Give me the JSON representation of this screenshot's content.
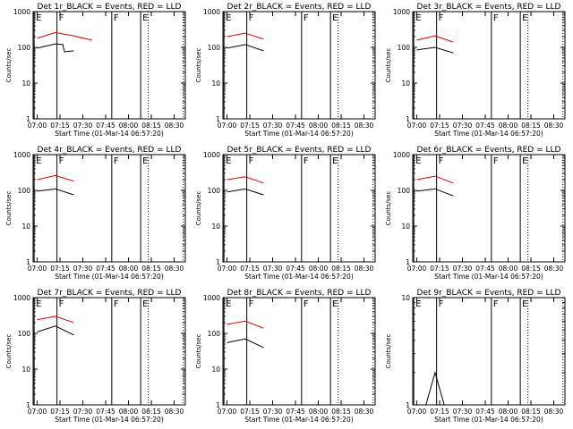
{
  "figure": {
    "x_tick_labels": [
      "07:00",
      "07:15",
      "07:30",
      "07:45",
      "08:00",
      "08:15",
      "08:30"
    ],
    "y_tick_labels": [
      "1",
      "10",
      "100",
      "1000"
    ],
    "xlabel": "Start Time (01-Mar-14 06:57:20)",
    "ylabel": "Counts/sec",
    "colors": {
      "events": "#000000",
      "lld": "#e00000",
      "axes": "#000000"
    }
  },
  "chart_data": [
    {
      "type": "line",
      "scale_y": "log",
      "ylim": [
        1,
        1000
      ],
      "xlim": [
        "06:57:20",
        "08:37:20"
      ],
      "title": "Det 1r_BLACK = Events, RED = LLD",
      "series": [
        {
          "values": [
            [
              7.0,
              95
            ],
            [
              7.1,
              110
            ],
            [
              7.2,
              125
            ],
            [
              7.28,
              120
            ],
            [
              7.3,
              75
            ],
            [
              7.4,
              80
            ]
          ]
        },
        {
          "values": [
            [
              7.0,
              180
            ],
            [
              7.2,
              260
            ],
            [
              7.4,
              210
            ],
            [
              7.6,
              160
            ]
          ]
        }
      ],
      "markers": [
        {
          "time": "06:58",
          "label": "E",
          "style": "solid"
        },
        {
          "time": "07:13",
          "label": "F",
          "style": "solid"
        },
        {
          "time": "07:49",
          "label": "F",
          "style": "solid"
        },
        {
          "time": "08:08",
          "label": "E",
          "style": "solid"
        },
        {
          "time": "08:13",
          "label": "",
          "style": "dotted"
        },
        {
          "time": "08:36",
          "label": "",
          "style": "dotted"
        }
      ]
    },
    {
      "type": "line",
      "scale_y": "log",
      "ylim": [
        1,
        1000
      ],
      "xlim": [
        "06:57:20",
        "08:37:20"
      ],
      "title": "Det 2r_BLACK = Events, RED = LLD",
      "series": [
        {
          "values": [
            [
              7.0,
              95
            ],
            [
              7.2,
              120
            ],
            [
              7.4,
              80
            ]
          ]
        },
        {
          "values": [
            [
              7.0,
              200
            ],
            [
              7.2,
              250
            ],
            [
              7.4,
              170
            ]
          ]
        }
      ],
      "markers": [
        {
          "time": "06:58",
          "label": "E",
          "style": "solid"
        },
        {
          "time": "07:13",
          "label": "F",
          "style": "solid"
        },
        {
          "time": "07:49",
          "label": "F",
          "style": "solid"
        },
        {
          "time": "08:08",
          "label": "E",
          "style": "solid"
        },
        {
          "time": "08:13",
          "label": "",
          "style": "dotted"
        },
        {
          "time": "08:36",
          "label": "",
          "style": "dotted"
        }
      ]
    },
    {
      "type": "line",
      "scale_y": "log",
      "ylim": [
        1,
        1000
      ],
      "xlim": [
        "06:57:20",
        "08:37:20"
      ],
      "title": "Det 3r_BLACK = Events, RED = LLD",
      "series": [
        {
          "values": [
            [
              7.0,
              85
            ],
            [
              7.2,
              100
            ],
            [
              7.4,
              70
            ]
          ]
        },
        {
          "values": [
            [
              7.0,
              160
            ],
            [
              7.2,
              210
            ],
            [
              7.4,
              140
            ]
          ]
        }
      ],
      "markers": [
        {
          "time": "06:58",
          "label": "E",
          "style": "solid"
        },
        {
          "time": "07:13",
          "label": "F",
          "style": "solid"
        },
        {
          "time": "07:49",
          "label": "F",
          "style": "solid"
        },
        {
          "time": "08:08",
          "label": "E",
          "style": "solid"
        },
        {
          "time": "08:13",
          "label": "",
          "style": "dotted"
        },
        {
          "time": "08:36",
          "label": "",
          "style": "dotted"
        }
      ]
    },
    {
      "type": "line",
      "scale_y": "log",
      "ylim": [
        1,
        1000
      ],
      "xlim": [
        "06:57:20",
        "08:37:20"
      ],
      "title": "Det 4r_BLACK = Events, RED = LLD",
      "series": [
        {
          "values": [
            [
              7.0,
              95
            ],
            [
              7.2,
              110
            ],
            [
              7.4,
              75
            ]
          ]
        },
        {
          "values": [
            [
              7.0,
              200
            ],
            [
              7.2,
              260
            ],
            [
              7.4,
              180
            ]
          ]
        }
      ],
      "markers": [
        {
          "time": "06:58",
          "label": "E",
          "style": "solid"
        },
        {
          "time": "07:13",
          "label": "F",
          "style": "solid"
        },
        {
          "time": "07:49",
          "label": "F",
          "style": "solid"
        },
        {
          "time": "08:08",
          "label": "E",
          "style": "solid"
        },
        {
          "time": "08:13",
          "label": "",
          "style": "dotted"
        },
        {
          "time": "08:36",
          "label": "",
          "style": "dotted"
        }
      ]
    },
    {
      "type": "line",
      "scale_y": "log",
      "ylim": [
        1,
        1000
      ],
      "xlim": [
        "06:57:20",
        "08:37:20"
      ],
      "title": "Det 5r_BLACK = Events, RED = LLD",
      "series": [
        {
          "values": [
            [
              7.0,
              90
            ],
            [
              7.2,
              110
            ],
            [
              7.4,
              75
            ]
          ]
        },
        {
          "values": [
            [
              7.0,
              200
            ],
            [
              7.2,
              240
            ],
            [
              7.4,
              160
            ]
          ]
        }
      ],
      "markers": [
        {
          "time": "06:58",
          "label": "E",
          "style": "solid"
        },
        {
          "time": "07:13",
          "label": "F",
          "style": "solid"
        },
        {
          "time": "07:49",
          "label": "F",
          "style": "solid"
        },
        {
          "time": "08:08",
          "label": "E",
          "style": "solid"
        },
        {
          "time": "08:13",
          "label": "",
          "style": "dotted"
        },
        {
          "time": "08:36",
          "label": "",
          "style": "dotted"
        }
      ]
    },
    {
      "type": "line",
      "scale_y": "log",
      "ylim": [
        1,
        1000
      ],
      "xlim": [
        "06:57:20",
        "08:37:20"
      ],
      "title": "Det 6r_BLACK = Events, RED = LLD",
      "series": [
        {
          "values": [
            [
              7.0,
              95
            ],
            [
              7.2,
              110
            ],
            [
              7.4,
              70
            ]
          ]
        },
        {
          "values": [
            [
              7.0,
              200
            ],
            [
              7.2,
              250
            ],
            [
              7.4,
              160
            ]
          ]
        }
      ],
      "markers": [
        {
          "time": "06:58",
          "label": "E",
          "style": "solid"
        },
        {
          "time": "07:13",
          "label": "F",
          "style": "solid"
        },
        {
          "time": "07:49",
          "label": "F",
          "style": "solid"
        },
        {
          "time": "08:08",
          "label": "E",
          "style": "solid"
        },
        {
          "time": "08:13",
          "label": "",
          "style": "dotted"
        },
        {
          "time": "08:36",
          "label": "",
          "style": "dotted"
        }
      ]
    },
    {
      "type": "line",
      "scale_y": "log",
      "ylim": [
        1,
        1000
      ],
      "xlim": [
        "06:57:20",
        "08:37:20"
      ],
      "title": "Det 7r_BLACK = Events, RED = LLD",
      "series": [
        {
          "values": [
            [
              7.0,
              110
            ],
            [
              7.2,
              160
            ],
            [
              7.4,
              90
            ]
          ]
        },
        {
          "values": [
            [
              7.0,
              240
            ],
            [
              7.2,
              300
            ],
            [
              7.4,
              200
            ]
          ]
        }
      ],
      "markers": [
        {
          "time": "06:58",
          "label": "E",
          "style": "solid"
        },
        {
          "time": "07:13",
          "label": "F",
          "style": "solid"
        },
        {
          "time": "07:49",
          "label": "F",
          "style": "solid"
        },
        {
          "time": "08:08",
          "label": "E",
          "style": "solid"
        },
        {
          "time": "08:13",
          "label": "",
          "style": "dotted"
        },
        {
          "time": "08:36",
          "label": "",
          "style": "dotted"
        }
      ]
    },
    {
      "type": "line",
      "scale_y": "log",
      "ylim": [
        1,
        1000
      ],
      "xlim": [
        "06:57:20",
        "08:37:20"
      ],
      "title": "Det 8r_BLACK = Events, RED = LLD",
      "series": [
        {
          "values": [
            [
              7.0,
              55
            ],
            [
              7.2,
              70
            ],
            [
              7.4,
              40
            ]
          ]
        },
        {
          "values": [
            [
              7.0,
              180
            ],
            [
              7.2,
              220
            ],
            [
              7.4,
              140
            ]
          ]
        }
      ],
      "markers": [
        {
          "time": "06:58",
          "label": "E",
          "style": "solid"
        },
        {
          "time": "07:13",
          "label": "F",
          "style": "solid"
        },
        {
          "time": "07:49",
          "label": "F",
          "style": "solid"
        },
        {
          "time": "08:08",
          "label": "E",
          "style": "solid"
        },
        {
          "time": "08:13",
          "label": "",
          "style": "dotted"
        },
        {
          "time": "08:36",
          "label": "",
          "style": "dotted"
        }
      ]
    },
    {
      "type": "line",
      "scale_y": "log",
      "ylim": [
        1,
        10
      ],
      "xlim": [
        "06:57:20",
        "08:37:20"
      ],
      "title": "Det 9r_BLACK = Events, RED = LLD",
      "series": [
        {
          "values": [
            [
              7.0,
              1
            ],
            [
              7.1,
              1
            ],
            [
              7.2,
              2
            ],
            [
              7.3,
              1
            ]
          ]
        }
      ],
      "markers": [
        {
          "time": "06:58",
          "label": "E",
          "style": "solid"
        },
        {
          "time": "07:13",
          "label": "F",
          "style": "solid"
        },
        {
          "time": "07:49",
          "label": "F",
          "style": "solid"
        },
        {
          "time": "08:08",
          "label": "E",
          "style": "solid"
        },
        {
          "time": "08:13",
          "label": "",
          "style": "dotted"
        },
        {
          "time": "08:36",
          "label": "",
          "style": "dotted"
        }
      ]
    }
  ]
}
